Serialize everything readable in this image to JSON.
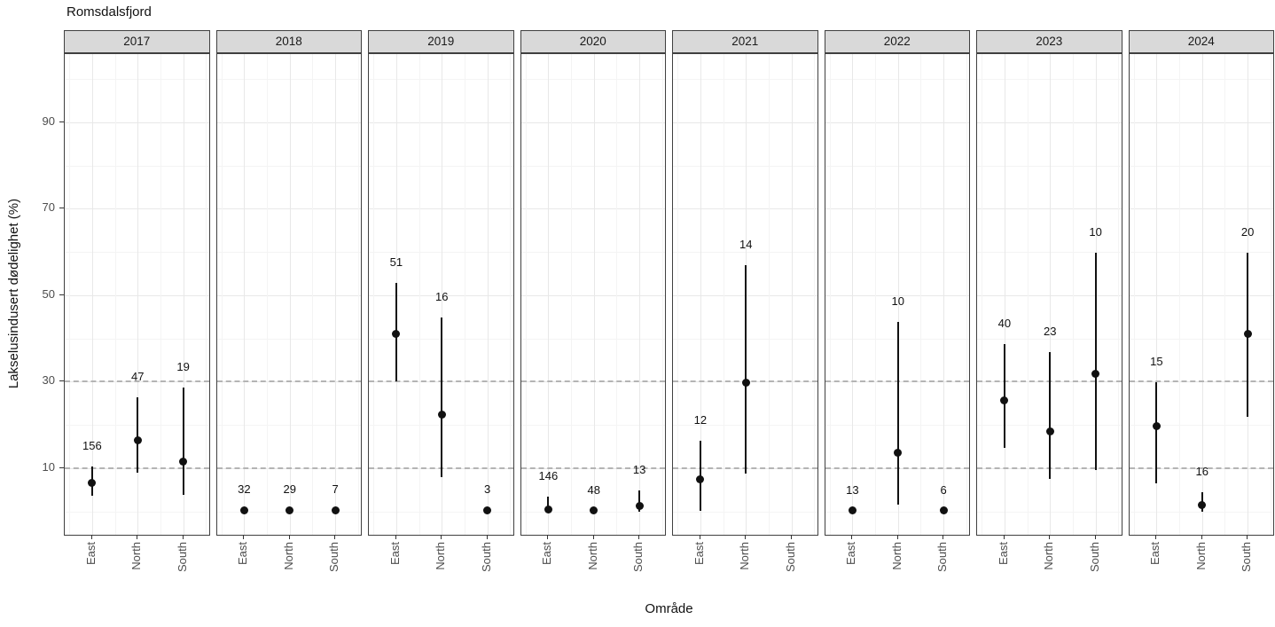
{
  "title": "Romsdalsfjord",
  "x_axis": {
    "title": "Område",
    "categories": [
      "East",
      "North",
      "South"
    ]
  },
  "y_axis": {
    "title": "Lakselusindusert dødelighet (%)",
    "ticks": [
      10,
      30,
      50,
      70,
      90
    ],
    "range": [
      -5.4,
      105.8
    ]
  },
  "reference_lines": [
    10,
    30
  ],
  "colors": {
    "point": "#111111",
    "errorbar": "#111111",
    "strip_fill": "#d9d9d9",
    "panel_border": "#404040",
    "grid_major": "#e8e8e8",
    "grid_minor": "#f4f4f4",
    "reference_dash": "#b4b4b4",
    "axis_text": "#4d4d4d"
  },
  "chart_data": {
    "type": "scatter",
    "subtype": "pointrange-facets",
    "title": "Romsdalsfjord",
    "xlabel": "Område",
    "ylabel": "Lakselusindusert dødelighet (%)",
    "ylim": [
      -5.4,
      105.8
    ],
    "y_major_breaks": [
      10,
      30,
      50,
      70,
      90
    ],
    "y_minor_breaks": [
      0,
      20,
      40,
      60,
      80,
      100
    ],
    "dashed_reference_y": [
      10,
      30
    ],
    "grid": true,
    "categories": [
      "East",
      "North",
      "South"
    ],
    "facets": [
      {
        "label": "2017",
        "points": [
          {
            "category": "East",
            "value": 6.5,
            "lo": 3.6,
            "hi": 10.5,
            "n": 156
          },
          {
            "category": "North",
            "value": 16.5,
            "lo": 9.0,
            "hi": 26.5,
            "n": 47
          },
          {
            "category": "South",
            "value": 11.6,
            "lo": 3.8,
            "hi": 28.7,
            "n": 19
          }
        ]
      },
      {
        "label": "2018",
        "points": [
          {
            "category": "East",
            "value": 0.3,
            "lo": null,
            "hi": null,
            "n": 32
          },
          {
            "category": "North",
            "value": 0.3,
            "lo": null,
            "hi": null,
            "n": 29
          },
          {
            "category": "South",
            "value": 0.3,
            "lo": null,
            "hi": null,
            "n": 7
          }
        ]
      },
      {
        "label": "2019",
        "points": [
          {
            "category": "East",
            "value": 41.0,
            "lo": 30.0,
            "hi": 52.9,
            "n": 51
          },
          {
            "category": "North",
            "value": 22.5,
            "lo": 8.0,
            "hi": 44.9,
            "n": 16
          },
          {
            "category": "South",
            "value": 0.3,
            "lo": null,
            "hi": null,
            "n": 3
          }
        ]
      },
      {
        "label": "2020",
        "points": [
          {
            "category": "East",
            "value": 0.5,
            "lo": 0.0,
            "hi": 3.5,
            "n": 146
          },
          {
            "category": "North",
            "value": 0.2,
            "lo": null,
            "hi": null,
            "n": 48
          },
          {
            "category": "South",
            "value": 1.3,
            "lo": 0.0,
            "hi": 4.9,
            "n": 13
          }
        ]
      },
      {
        "label": "2021",
        "points": [
          {
            "category": "East",
            "value": 7.4,
            "lo": 0.2,
            "hi": 16.4,
            "n": 12
          },
          {
            "category": "North",
            "value": 29.8,
            "lo": 8.8,
            "hi": 56.9,
            "n": 14
          }
        ]
      },
      {
        "label": "2022",
        "points": [
          {
            "category": "East",
            "value": 0.2,
            "lo": null,
            "hi": null,
            "n": 13
          },
          {
            "category": "North",
            "value": 13.5,
            "lo": 1.5,
            "hi": 43.8,
            "n": 10
          },
          {
            "category": "South",
            "value": 0.2,
            "lo": null,
            "hi": null,
            "n": 6
          }
        ]
      },
      {
        "label": "2023",
        "points": [
          {
            "category": "East",
            "value": 25.7,
            "lo": 14.7,
            "hi": 38.7,
            "n": 40
          },
          {
            "category": "North",
            "value": 18.5,
            "lo": 7.5,
            "hi": 36.9,
            "n": 23
          },
          {
            "category": "South",
            "value": 31.8,
            "lo": 9.6,
            "hi": 59.9,
            "n": 10
          }
        ]
      },
      {
        "label": "2024",
        "points": [
          {
            "category": "East",
            "value": 19.8,
            "lo": 6.5,
            "hi": 29.8,
            "n": 15
          },
          {
            "category": "North",
            "value": 1.4,
            "lo": 0.0,
            "hi": 4.5,
            "n": 16
          },
          {
            "category": "South",
            "value": 41.0,
            "lo": 21.9,
            "hi": 59.9,
            "n": 20
          }
        ]
      }
    ]
  }
}
